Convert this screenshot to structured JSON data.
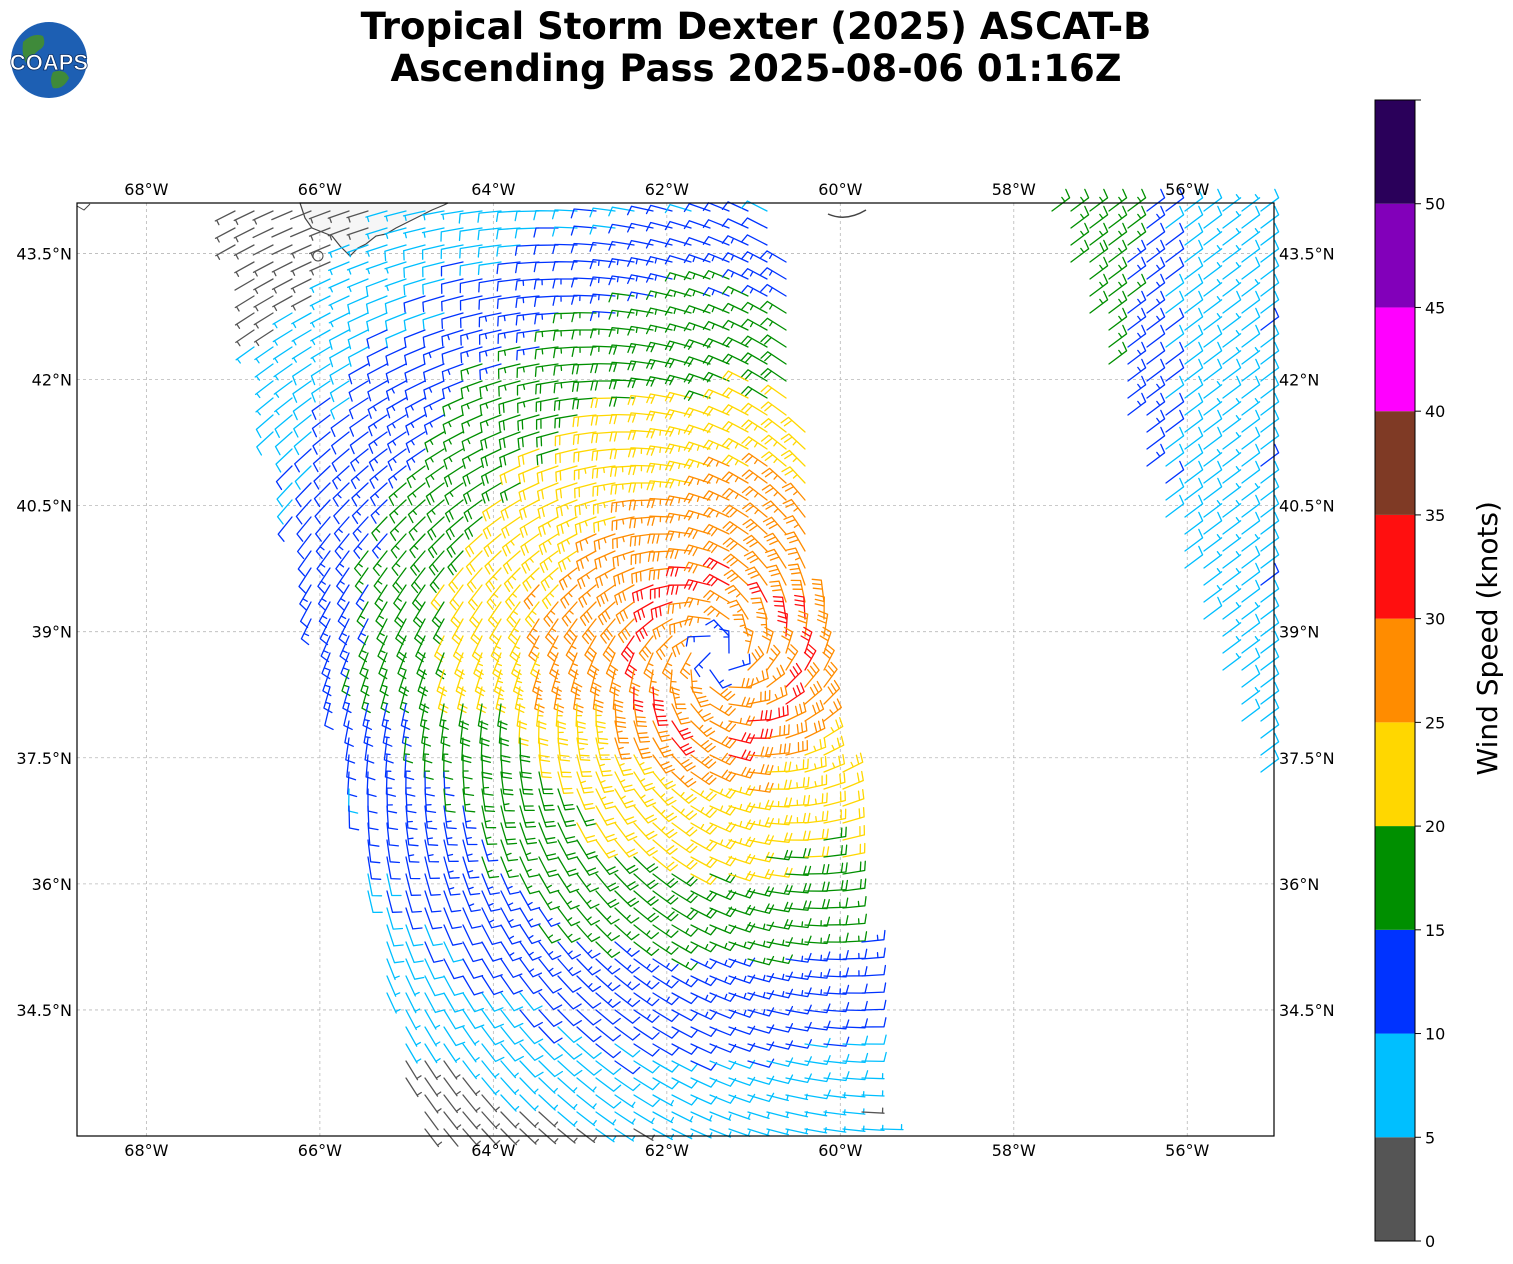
{
  "header": {
    "title_line1": "Tropical Storm Dexter (2025) ASCAT-B",
    "title_line2": "Ascending Pass 2025-08-06 01:16Z",
    "logo_text": "COAPS"
  },
  "map": {
    "lon_range": [
      -68.8,
      -55.0
    ],
    "lat_range": [
      33.0,
      44.1
    ],
    "lon_ticks": [
      {
        "value": -68,
        "label": "68°W"
      },
      {
        "value": -66,
        "label": "66°W"
      },
      {
        "value": -64,
        "label": "64°W"
      },
      {
        "value": -62,
        "label": "62°W"
      },
      {
        "value": -60,
        "label": "60°W"
      },
      {
        "value": -58,
        "label": "58°W"
      },
      {
        "value": -56,
        "label": "56°W"
      }
    ],
    "lat_ticks": [
      {
        "value": 43.5,
        "label": "43.5°N"
      },
      {
        "value": 42,
        "label": "42°N"
      },
      {
        "value": 40.5,
        "label": "40.5°N"
      },
      {
        "value": 39,
        "label": "39°N"
      },
      {
        "value": 37.5,
        "label": "37.5°N"
      },
      {
        "value": 36,
        "label": "36°N"
      },
      {
        "value": 34.5,
        "label": "34.5°N"
      }
    ],
    "grid": true,
    "storm_center": {
      "lon": -61.4,
      "lat": 38.7
    },
    "swath_left": {
      "lon_west": [
        -67.1,
        -64.9
      ],
      "lon_east": [
        -60.7,
        -59.5
      ],
      "lat": [
        44.1,
        33.0
      ]
    },
    "swath_right": {
      "lon_west": [
        -57.6,
        -55.0
      ],
      "lat": [
        44.1,
        36.9
      ]
    }
  },
  "colorbar": {
    "label": "Wind Speed (knots)",
    "ticks": [
      "0",
      "5",
      "10",
      "15",
      "20",
      "25",
      "30",
      "35",
      "40",
      "45",
      "50"
    ],
    "range": [
      0,
      55
    ],
    "bins": [
      {
        "min": 0,
        "max": 5,
        "color": "#555555"
      },
      {
        "min": 5,
        "max": 10,
        "color": "#00bfff"
      },
      {
        "min": 10,
        "max": 15,
        "color": "#0033ff"
      },
      {
        "min": 15,
        "max": 20,
        "color": "#008f00"
      },
      {
        "min": 20,
        "max": 25,
        "color": "#ffd700"
      },
      {
        "min": 25,
        "max": 30,
        "color": "#ff8c00"
      },
      {
        "min": 30,
        "max": 35,
        "color": "#ff0f0f"
      },
      {
        "min": 35,
        "max": 40,
        "color": "#7f3a25"
      },
      {
        "min": 40,
        "max": 45,
        "color": "#ff00ff"
      },
      {
        "min": 45,
        "max": 50,
        "color": "#8200ba"
      },
      {
        "min": 50,
        "max": 55,
        "color": "#2a005a"
      }
    ]
  }
}
